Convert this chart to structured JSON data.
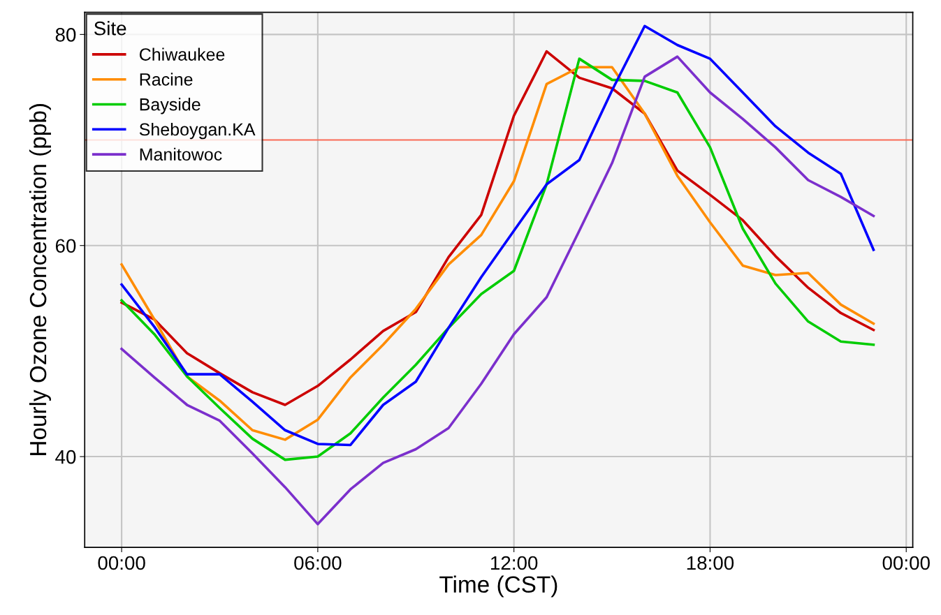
{
  "chart_data": {
    "type": "line",
    "xlabel": "Time (CST)",
    "ylabel": "Hourly Ozone Concentration (ppb)",
    "legend_title": "Site",
    "legend": "top left",
    "grid": true,
    "marker": "none",
    "line_style": "solid",
    "x": [
      0,
      1,
      2,
      3,
      4,
      5,
      6,
      7,
      8,
      9,
      10,
      11,
      12,
      13,
      14,
      15,
      16,
      17,
      18,
      19,
      20,
      21,
      22,
      23
    ],
    "xlim": [
      -1.13,
      24.2
    ],
    "xticks": [
      {
        "value": 0,
        "label": "00:00"
      },
      {
        "value": 6,
        "label": "06:00"
      },
      {
        "value": 12,
        "label": "12:00"
      },
      {
        "value": 18,
        "label": "18:00"
      },
      {
        "value": 24,
        "label": "00:00"
      }
    ],
    "ylim": [
      31.4,
      82.1
    ],
    "yticks": [
      40,
      60,
      80
    ],
    "ref_lines": [
      {
        "axis": "y",
        "value": 70,
        "color": "#fa6a55"
      }
    ],
    "series": [
      {
        "name": "Chiwaukee",
        "color": "#cc0000",
        "values": [
          54.6,
          53.0,
          49.8,
          47.9,
          46.1,
          44.9,
          46.7,
          49.2,
          51.9,
          53.7,
          58.9,
          62.9,
          72.3,
          78.4,
          75.9,
          74.9,
          72.5,
          67.1,
          64.8,
          62.4,
          59.0,
          56.0,
          53.6,
          52.0
        ]
      },
      {
        "name": "Racine",
        "color": "#ff8c00",
        "values": [
          58.2,
          53.0,
          47.6,
          45.3,
          42.5,
          41.6,
          43.5,
          47.5,
          50.6,
          54.0,
          58.2,
          61.0,
          66.1,
          75.3,
          76.9,
          76.9,
          72.5,
          66.6,
          62.2,
          58.1,
          57.2,
          57.4,
          54.4,
          52.6
        ]
      },
      {
        "name": "Bayside",
        "color": "#00cc00",
        "values": [
          54.8,
          51.6,
          47.6,
          44.6,
          41.7,
          39.7,
          40.0,
          42.2,
          45.6,
          48.7,
          52.2,
          55.4,
          57.6,
          65.8,
          77.7,
          75.7,
          75.6,
          74.5,
          69.3,
          61.6,
          56.4,
          52.8,
          50.9,
          50.6
        ]
      },
      {
        "name": "Sheboygan.KA",
        "color": "#0000ff",
        "values": [
          56.3,
          52.3,
          47.8,
          47.8,
          45.2,
          42.5,
          41.2,
          41.1,
          44.9,
          47.1,
          52.2,
          57.0,
          61.4,
          65.8,
          68.1,
          74.7,
          80.8,
          79.0,
          77.7,
          74.5,
          71.3,
          68.8,
          66.8,
          59.6
        ]
      },
      {
        "name": "Manitowoc",
        "color": "#7b2fcc",
        "values": [
          50.2,
          47.5,
          44.9,
          43.4,
          40.3,
          37.1,
          33.6,
          36.9,
          39.4,
          40.7,
          42.7,
          46.9,
          51.6,
          55.1,
          61.4,
          67.8,
          76.0,
          77.9,
          74.5,
          72.0,
          69.3,
          66.2,
          64.6,
          62.8
        ]
      }
    ]
  }
}
